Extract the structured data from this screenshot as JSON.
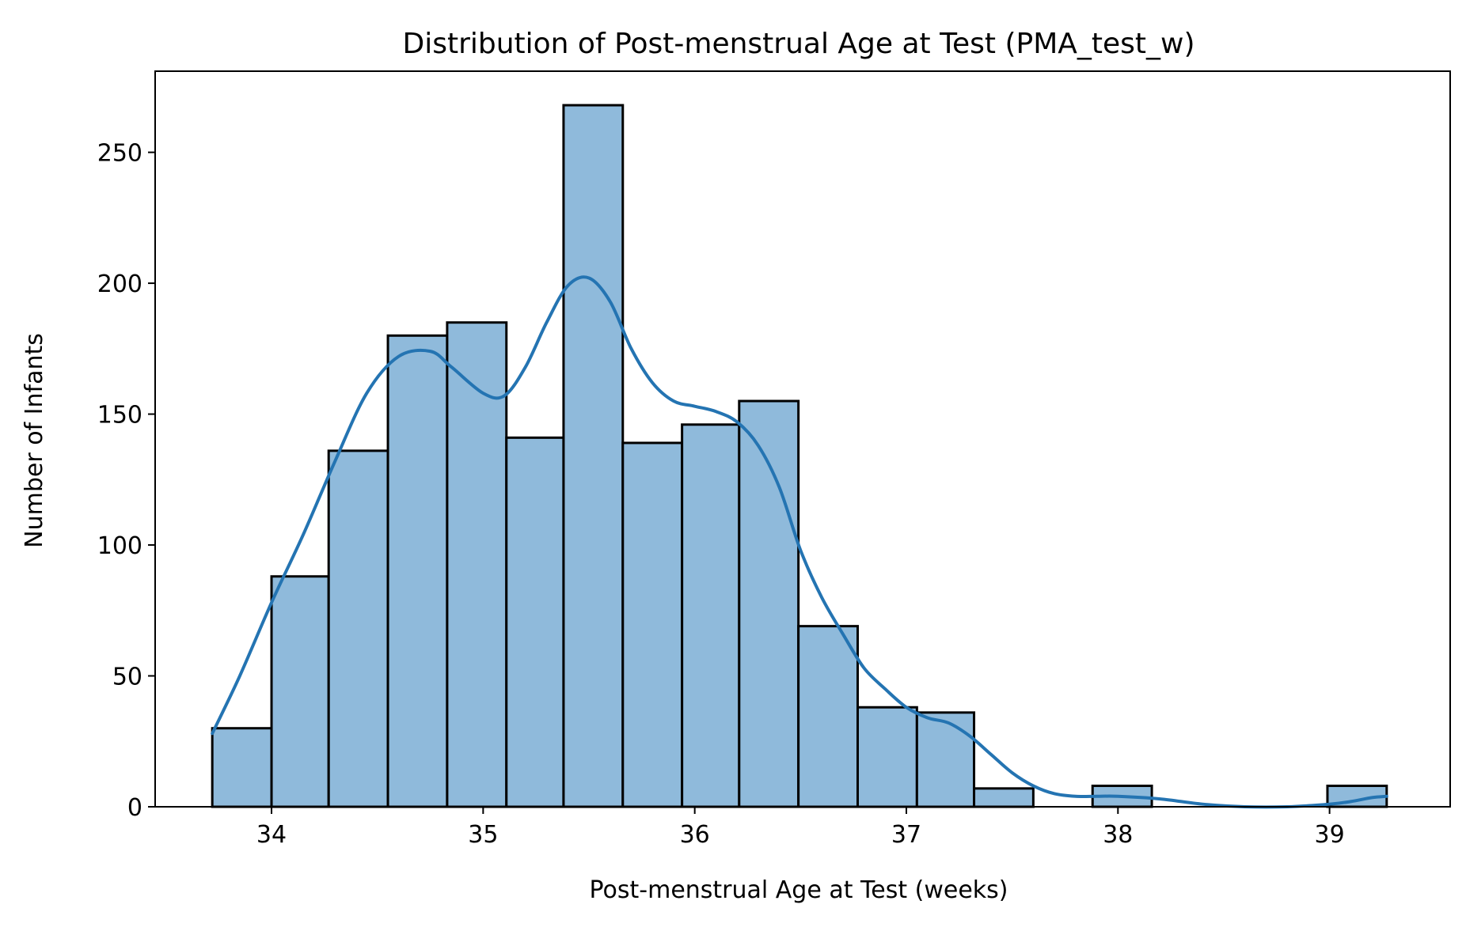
{
  "chart_data": {
    "type": "bar",
    "title": "Distribution of Post-menstrual Age at Test (PMA_test_w)",
    "xlabel": "Post-menstrual Age at Test (weeks)",
    "ylabel": "Number of Infants",
    "xlim": [
      33.45,
      39.57
    ],
    "ylim": [
      0,
      281
    ],
    "xticks": [
      34,
      35,
      36,
      37,
      38,
      39
    ],
    "yticks": [
      0,
      50,
      100,
      150,
      200,
      250
    ],
    "grid": false,
    "legend": false,
    "colors": {
      "bar_fill": "#8fbadb",
      "bar_edge": "#000000",
      "kde_line": "#2474b2"
    },
    "bin_edges": [
      33.72,
      34.0,
      34.27,
      34.55,
      34.83,
      35.11,
      35.38,
      35.66,
      35.94,
      36.21,
      36.49,
      36.77,
      37.05,
      37.32,
      37.6,
      37.88,
      38.16,
      38.43,
      38.71,
      38.99,
      39.27
    ],
    "values": [
      30,
      88,
      136,
      180,
      185,
      141,
      268,
      139,
      146,
      155,
      69,
      38,
      36,
      7,
      0,
      8,
      0,
      0,
      0,
      8
    ],
    "kde": {
      "x": [
        33.72,
        33.85,
        34.0,
        34.15,
        34.3,
        34.45,
        34.6,
        34.75,
        34.85,
        35.0,
        35.1,
        35.2,
        35.3,
        35.4,
        35.5,
        35.6,
        35.7,
        35.8,
        35.9,
        36.0,
        36.1,
        36.2,
        36.3,
        36.4,
        36.5,
        36.6,
        36.7,
        36.8,
        36.9,
        37.0,
        37.1,
        37.2,
        37.3,
        37.4,
        37.5,
        37.6,
        37.7,
        37.8,
        37.9,
        38.0,
        38.2,
        38.4,
        38.6,
        38.8,
        39.0,
        39.1,
        39.2,
        39.27
      ],
      "y": [
        28,
        50,
        78,
        104,
        132,
        158,
        172,
        174,
        168,
        158,
        157,
        168,
        185,
        199,
        202,
        193,
        175,
        162,
        155,
        153,
        151,
        147,
        138,
        122,
        98,
        80,
        66,
        53,
        45,
        38,
        34,
        32,
        27,
        20,
        13,
        8,
        5,
        4,
        4,
        4,
        3,
        1,
        0,
        0,
        1,
        2,
        3.5,
        4
      ]
    }
  }
}
